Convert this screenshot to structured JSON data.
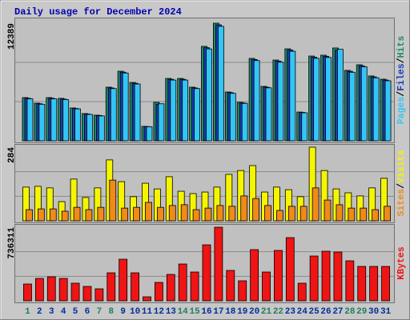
{
  "legend_separator": "/",
  "chart_data": [
    {
      "type": "bar",
      "title": "Daily usage for December 2024",
      "ylim": [
        0,
        12389
      ],
      "yticks": [
        12389
      ],
      "series": [
        {
          "name": "Pages",
          "color": "#33c6f5",
          "values": [
            4420,
            3850,
            4420,
            4340,
            3360,
            2780,
            2620,
            5500,
            7140,
            5980,
            1480,
            3900,
            6400,
            6400,
            5500,
            9680,
            12060,
            5000,
            3940,
            8450,
            5580,
            8280,
            9430,
            2950,
            8690,
            8780,
            9640,
            7220,
            7800,
            6640,
            6320
          ]
        },
        {
          "name": "Files",
          "color": "#1a3fb8",
          "values": [
            4480,
            3900,
            4480,
            4400,
            3400,
            2820,
            2660,
            5570,
            7230,
            6060,
            1500,
            3850,
            6480,
            6480,
            5570,
            9810,
            12220,
            5070,
            3990,
            8560,
            5650,
            8390,
            9560,
            2990,
            8810,
            8900,
            9550,
            7320,
            7900,
            6730,
            6400
          ]
        },
        {
          "name": "Hits",
          "color": "#1f8a6a",
          "values": [
            4550,
            3960,
            4550,
            4470,
            3460,
            2870,
            2700,
            5650,
            7330,
            6150,
            1520,
            4050,
            6570,
            6570,
            5650,
            9950,
            12389,
            5140,
            4050,
            8680,
            5730,
            8510,
            9690,
            3030,
            8930,
            9020,
            9780,
            7420,
            8010,
            6830,
            6490
          ]
        }
      ]
    },
    {
      "type": "bar",
      "ylim": [
        0,
        284
      ],
      "yticks": [
        284
      ],
      "series": [
        {
          "name": "Sites",
          "color": "#f08a18",
          "values": [
            43,
            46,
            46,
            37,
            52,
            43,
            52,
            157,
            49,
            52,
            71,
            52,
            59,
            62,
            43,
            49,
            59,
            56,
            96,
            86,
            59,
            40,
            56,
            56,
            127,
            80,
            62,
            49,
            49,
            43,
            56
          ]
        },
        {
          "name": "Visits",
          "color": "#f5f500",
          "values": [
            130,
            133,
            127,
            74,
            161,
            90,
            127,
            235,
            151,
            93,
            145,
            123,
            170,
            114,
            105,
            111,
            130,
            179,
            194,
            213,
            111,
            130,
            120,
            93,
            284,
            194,
            123,
            108,
            96,
            127,
            164
          ]
        }
      ]
    },
    {
      "type": "bar",
      "ylim": [
        0,
        736311
      ],
      "yticks": [
        736311
      ],
      "categories": [
        "1",
        "2",
        "3",
        "4",
        "5",
        "6",
        "7",
        "8",
        "9",
        "10",
        "11",
        "12",
        "13",
        "14",
        "15",
        "16",
        "17",
        "18",
        "19",
        "20",
        "21",
        "22",
        "23",
        "24",
        "25",
        "26",
        "27",
        "28",
        "29",
        "30",
        "31"
      ],
      "category_colors": [
        "#208060",
        "#00309c",
        "#00309c",
        "#00309c",
        "#00309c",
        "#00309c",
        "#208060",
        "#208060",
        "#00309c",
        "#00309c",
        "#00309c",
        "#00309c",
        "#00309c",
        "#208060",
        "#208060",
        "#00309c",
        "#00309c",
        "#00309c",
        "#00309c",
        "#00309c",
        "#208060",
        "#208060",
        "#00309c",
        "#00309c",
        "#00309c",
        "#00309c",
        "#00309c",
        "#208060",
        "#208060",
        "#00309c",
        "#00309c"
      ],
      "series": [
        {
          "name": "KBytes",
          "color": "#f01414",
          "values": [
            168000,
            224000,
            240000,
            224000,
            176000,
            144000,
            120000,
            280000,
            416000,
            280000,
            40000,
            184000,
            264000,
            368000,
            288000,
            560000,
            736311,
            304000,
            200000,
            512000,
            288000,
            504000,
            632000,
            176000,
            448000,
            496000,
            488000,
            400000,
            344000,
            344000,
            344000
          ]
        }
      ]
    }
  ]
}
